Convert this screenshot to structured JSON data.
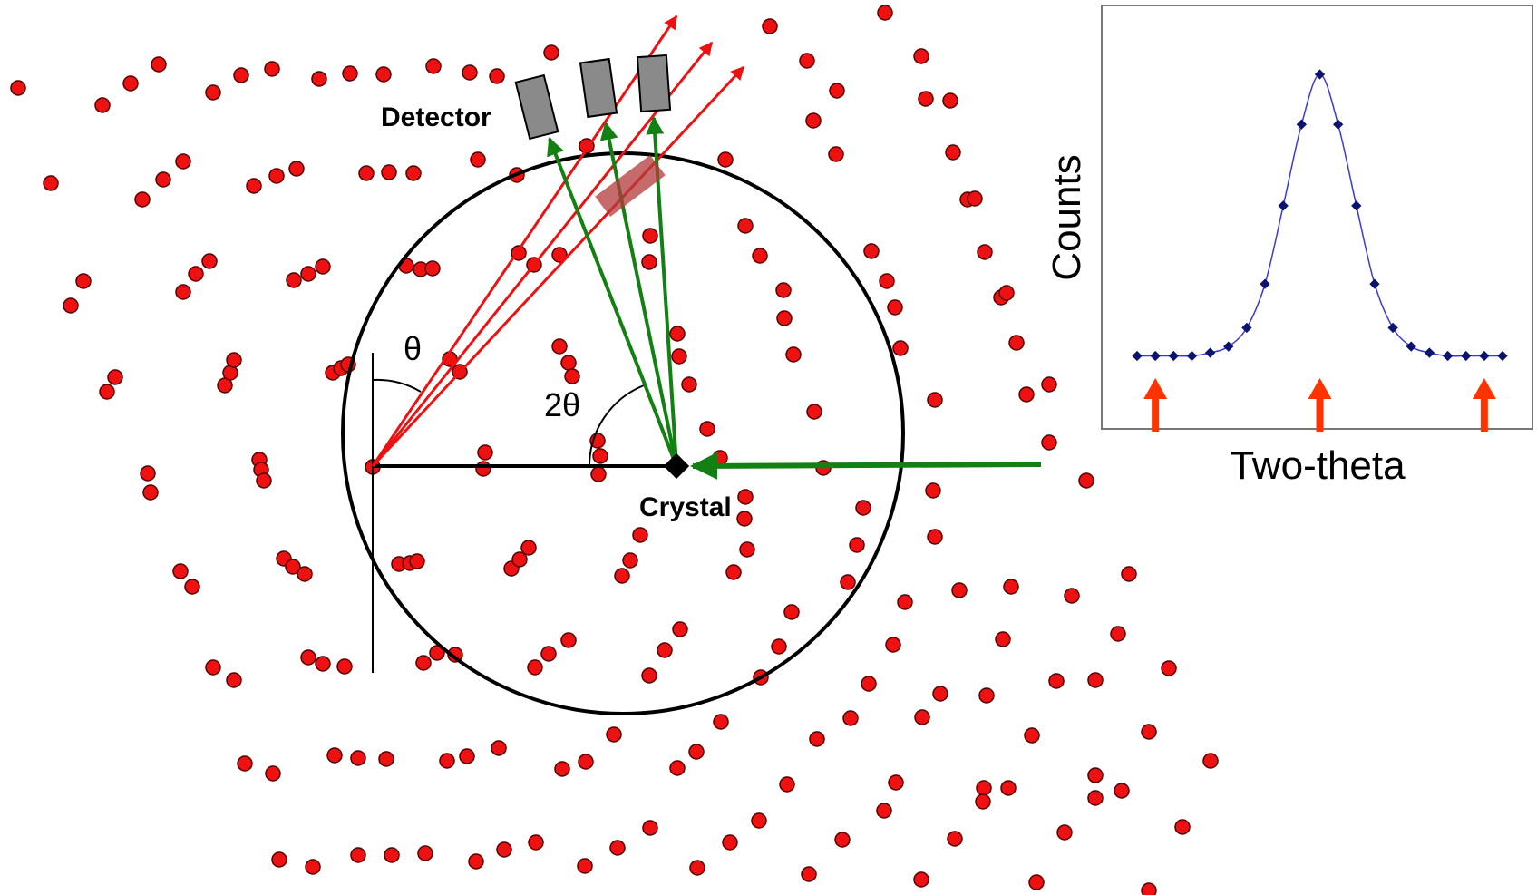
{
  "labels": {
    "detector": "Detector",
    "crystal": "Crystal",
    "theta": "θ",
    "two_theta": "2θ"
  },
  "colors": {
    "atom_fill": "#ee1111",
    "atom_stroke": "#550000",
    "incident_beam": "#128012",
    "diffracted_beam": "#ee1111",
    "circle": "#000000",
    "detector": "#8a8a8a",
    "plot_line": "#3a3ad8",
    "plot_marker": "#0b1270",
    "plot_arrow": "#ff3300"
  },
  "icons": {
    "crystal": "black-diamond-crystal-icon",
    "detector": "grey-block-detector-icon"
  },
  "chart_data": {
    "type": "line",
    "title": "",
    "xlabel": "Two-theta",
    "ylabel": "Counts",
    "grid": false,
    "legend": "none",
    "xlim": [
      0,
      20
    ],
    "ylim": [
      0,
      100
    ],
    "series": [
      {
        "x": [
          0,
          1,
          2,
          3,
          4,
          5,
          6,
          7,
          8,
          9,
          10,
          11,
          12,
          13,
          14,
          15,
          16,
          17,
          18,
          19,
          20
        ],
        "values": [
          10,
          10,
          10,
          10,
          11,
          13,
          19,
          33,
          58,
          84,
          100,
          84,
          58,
          33,
          19,
          13,
          11,
          10,
          10,
          10,
          10
        ]
      }
    ],
    "annotations": [
      {
        "kind": "up-arrow",
        "x": 1
      },
      {
        "kind": "up-arrow",
        "x": 10
      },
      {
        "kind": "up-arrow",
        "x": 19
      }
    ]
  }
}
